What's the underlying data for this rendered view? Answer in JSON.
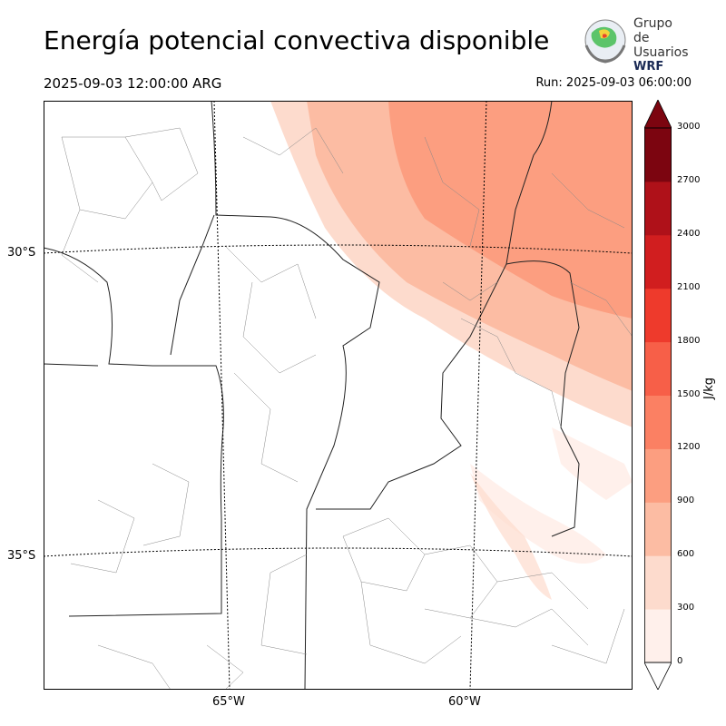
{
  "header": {
    "title": "Energía potencial convectiva disponible",
    "valid_time": "2025-09-03 12:00:00 ARG",
    "run_time": "Run: 2025-09-03 06:00:00"
  },
  "logo": {
    "line1": "Grupo de",
    "line2": "Usuarios",
    "line3": "WRF"
  },
  "map": {
    "variable": "CAPE",
    "lat_labels": [
      "30°S",
      "35°S"
    ],
    "lon_labels": [
      "65°W",
      "60°W"
    ]
  },
  "colorbar": {
    "unit": "J/kg",
    "ticks": [
      "0",
      "300",
      "600",
      "900",
      "1200",
      "1500",
      "1800",
      "2100",
      "2400",
      "2700",
      "3000"
    ],
    "colors": [
      "#fff0eb",
      "#fddbcd",
      "#fcbca3",
      "#fc9e80",
      "#fb8063",
      "#f75f48",
      "#ee3a2c",
      "#d11e1f",
      "#af1119",
      "#7c0510"
    ],
    "extend": "both"
  }
}
